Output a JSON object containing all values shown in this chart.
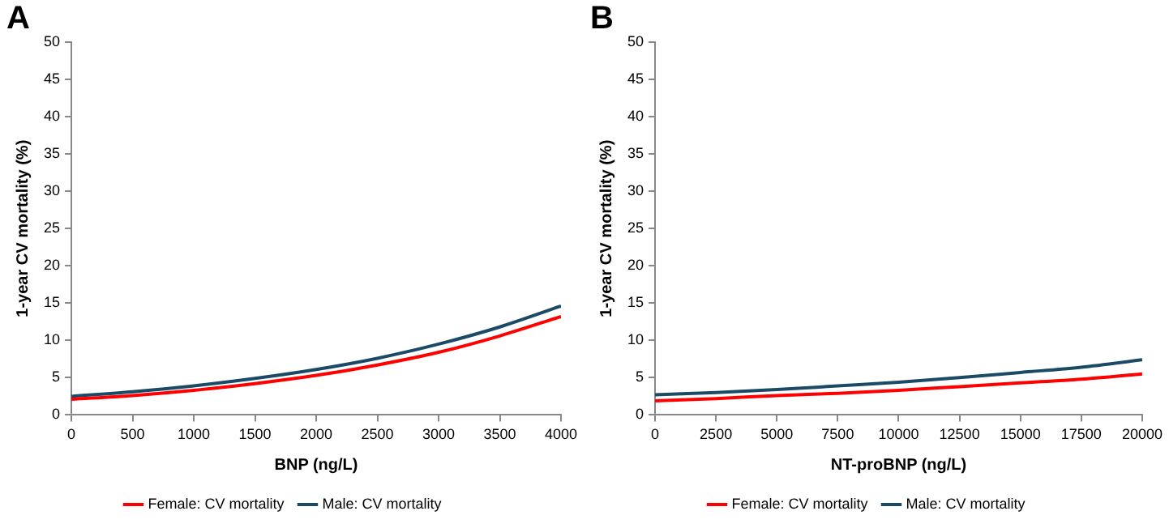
{
  "chart_data": [
    {
      "type": "line",
      "title": "A",
      "xlabel": "BNP (ng/L)",
      "ylabel": "1-year CV mortality (%)",
      "x": [
        0,
        500,
        1000,
        1500,
        2000,
        2500,
        3000,
        3500,
        4000
      ],
      "series": [
        {
          "name": "Female: CV mortality",
          "color": "#ff0000",
          "values": [
            2.1,
            2.6,
            3.3,
            4.2,
            5.3,
            6.7,
            8.4,
            10.6,
            13.2
          ]
        },
        {
          "name": "Male: CV mortality",
          "color": "#1b4a66",
          "values": [
            2.5,
            3.1,
            3.9,
            4.9,
            6.1,
            7.6,
            9.5,
            11.8,
            14.6
          ]
        }
      ],
      "xlim": [
        0,
        4000
      ],
      "xticks": [
        0,
        500,
        1000,
        1500,
        2000,
        2500,
        3000,
        3500,
        4000
      ],
      "ylim": [
        0,
        50
      ],
      "yticks": [
        0,
        5,
        10,
        15,
        20,
        25,
        30,
        35,
        40,
        45,
        50
      ],
      "grid": false,
      "legend": "bottom",
      "marker": "none",
      "line_style": "solid"
    },
    {
      "type": "line",
      "title": "B",
      "xlabel": "NT-proBNP (ng/L)",
      "ylabel": "1-year CV mortality (%)",
      "x": [
        0,
        2500,
        5000,
        7500,
        10000,
        12500,
        15000,
        17500,
        20000
      ],
      "series": [
        {
          "name": "Female: CV mortality",
          "color": "#ff0000",
          "values": [
            1.9,
            2.2,
            2.6,
            2.9,
            3.3,
            3.8,
            4.3,
            4.8,
            5.5
          ]
        },
        {
          "name": "Male: CV mortality",
          "color": "#1b4a66",
          "values": [
            2.7,
            3.0,
            3.4,
            3.9,
            4.4,
            5.0,
            5.7,
            6.4,
            7.4
          ]
        }
      ],
      "xlim": [
        0,
        20000
      ],
      "xticks": [
        0,
        2500,
        5000,
        7500,
        10000,
        12500,
        15000,
        17500,
        20000
      ],
      "ylim": [
        0,
        50
      ],
      "yticks": [
        0,
        5,
        10,
        15,
        20,
        25,
        30,
        35,
        40,
        45,
        50
      ],
      "grid": false,
      "legend": "bottom",
      "marker": "none",
      "line_style": "solid"
    }
  ]
}
